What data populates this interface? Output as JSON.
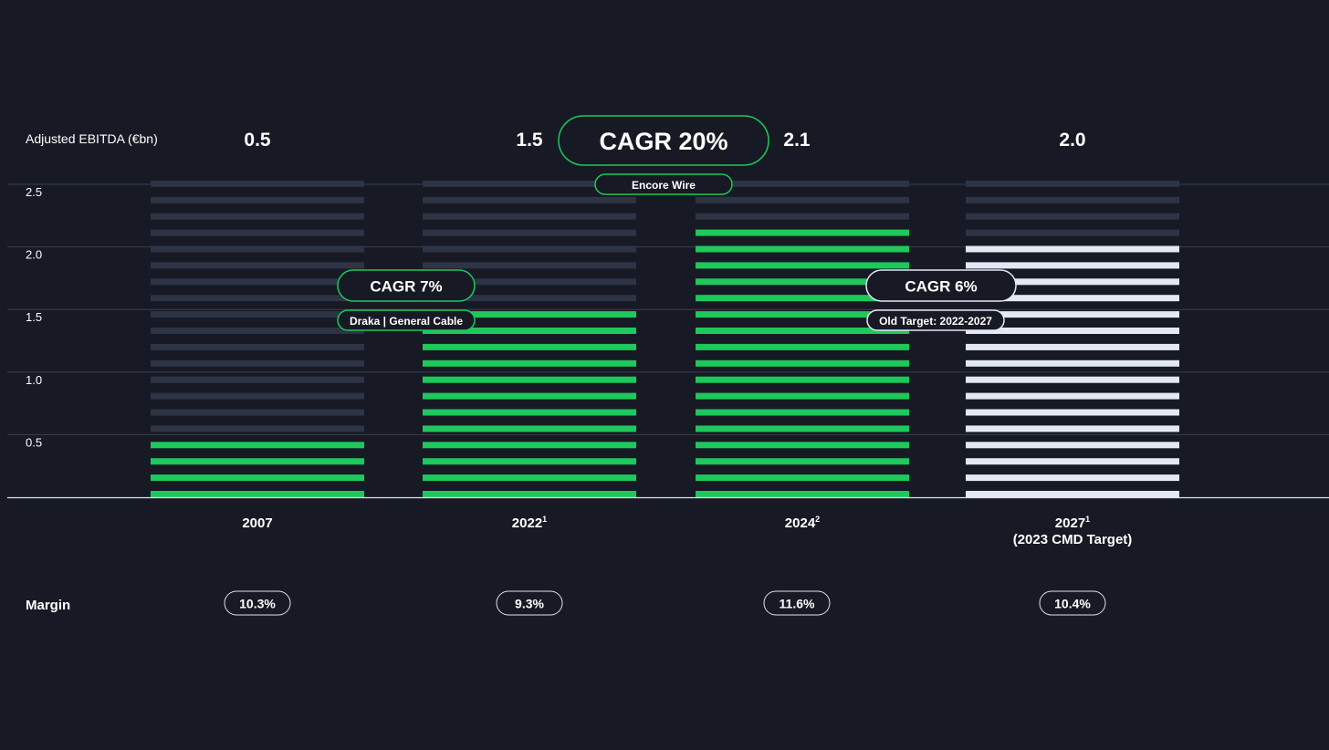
{
  "chart_data": {
    "type": "bar",
    "ylabel": "Adjusted EBITDA (€bn)",
    "ylim": [
      0,
      2.5
    ],
    "yticks": [
      "2.5",
      "2.0",
      "1.5",
      "1.0",
      "0.5"
    ],
    "grid": true,
    "categories": [
      {
        "label": "2007",
        "sup": "",
        "sub": ""
      },
      {
        "label": "2022",
        "sup": "1",
        "sub": ""
      },
      {
        "label": "2024",
        "sup": "2",
        "sub": ""
      },
      {
        "label": "2027",
        "sup": "1",
        "sub": "(2023 CMD Target)"
      }
    ],
    "values": [
      0.5,
      1.5,
      2.1,
      2.0
    ],
    "value_labels": [
      "0.5",
      "1.5",
      "2.1",
      "2.0"
    ],
    "margin_label": "Margin",
    "margins": [
      "10.3%",
      "9.3%",
      "11.6%",
      "10.4%"
    ],
    "annotations": [
      {
        "text": "CAGR 7%",
        "note": "Draka | General Cable",
        "style": "green"
      },
      {
        "text": "CAGR 20%",
        "note": "Encore Wire",
        "style": "green"
      },
      {
        "text": "CAGR 6%",
        "note": "Old Target: 2022-2027",
        "style": "white"
      }
    ],
    "colors": {
      "background": "#171a24",
      "bar_empty": "#2c3445",
      "bar_actual": "#1ec85a",
      "bar_target": "#e3e8f5",
      "grid": "#3a3f4c",
      "accent_border": "#1ec85a"
    }
  }
}
